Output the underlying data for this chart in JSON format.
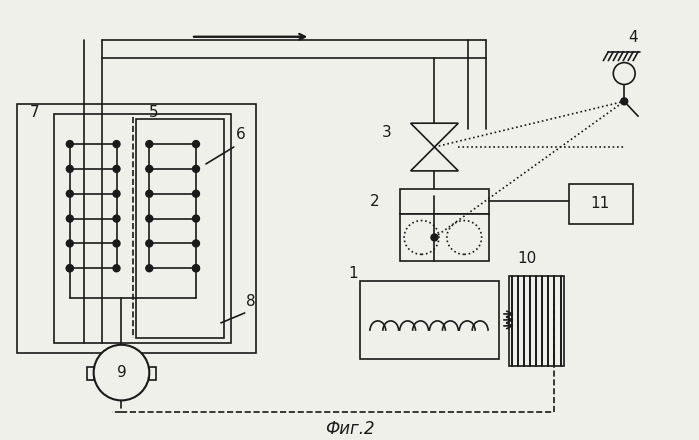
{
  "bg_color": "#f0f0eb",
  "line_color": "#1a1a1a",
  "title": "Фиг.2",
  "title_fontsize": 12
}
